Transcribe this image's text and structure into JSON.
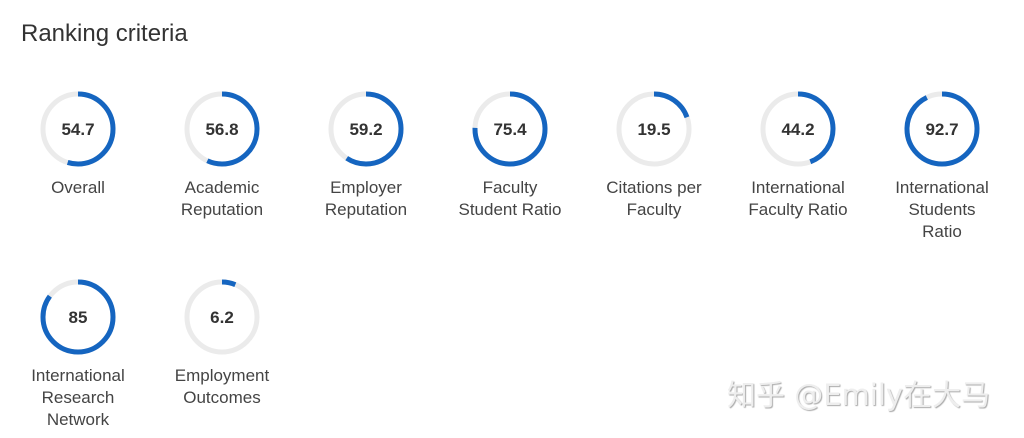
{
  "title": "Ranking criteria",
  "accent": "#1565c0",
  "track": "#ebebeb",
  "criteria": [
    {
      "label": "Overall",
      "score": 54.7
    },
    {
      "label": "Academic Reputation",
      "score": 56.8
    },
    {
      "label": "Employer Reputation",
      "score": 59.2
    },
    {
      "label": "Faculty Student Ratio",
      "score": 75.4
    },
    {
      "label": "Citations per Faculty",
      "score": 19.5
    },
    {
      "label": "International Faculty Ratio",
      "score": 44.2
    },
    {
      "label": "International Students Ratio",
      "score": 92.7
    },
    {
      "label": "International Research Network",
      "score": 85
    },
    {
      "label": "Employment Outcomes",
      "score": 6.2
    }
  ],
  "watermark": "知乎 @Emily在大马"
}
